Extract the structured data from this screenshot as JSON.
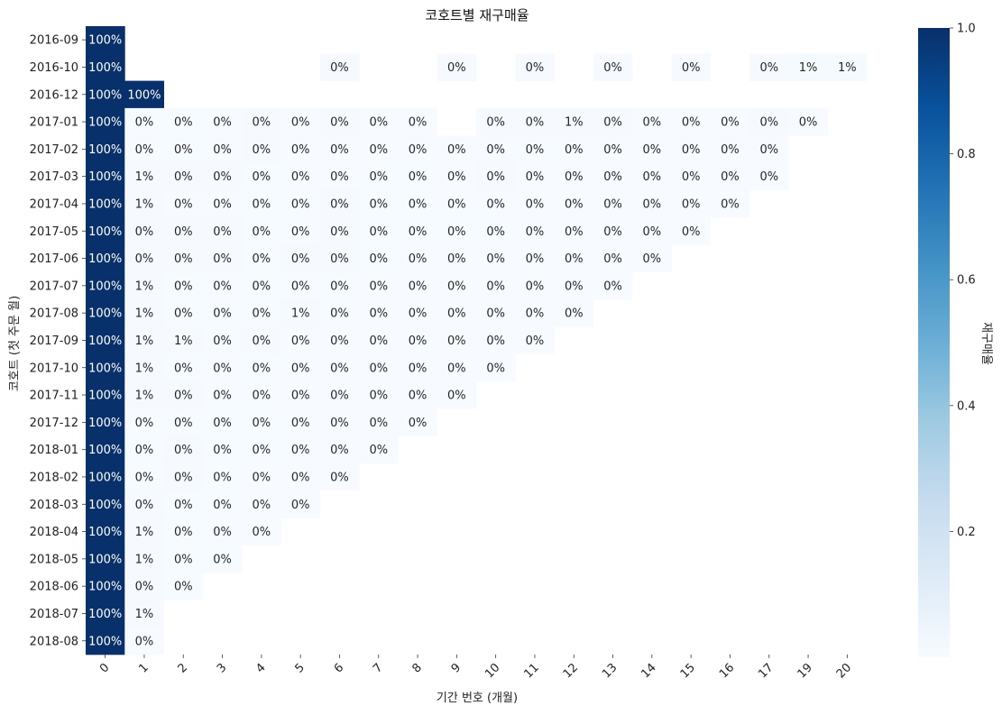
{
  "chart_data": {
    "type": "heatmap",
    "title": "코호트별 재구매율",
    "xlabel": "기간 번호 (개월)",
    "ylabel": "코호트 (첫 주문 월)",
    "colorbar_label": "재구매율",
    "colormap": "Blues",
    "vmin": 0.0,
    "vmax": 1.0,
    "colorbar_ticks": [
      "0.2",
      "0.4",
      "0.6",
      "0.8",
      "1.0"
    ],
    "colorbar_tick_values": [
      0.2,
      0.4,
      0.6,
      0.8,
      1.0
    ],
    "x": [
      "0",
      "1",
      "2",
      "3",
      "4",
      "5",
      "6",
      "7",
      "8",
      "9",
      "10",
      "11",
      "12",
      "13",
      "14",
      "15",
      "16",
      "17",
      "19",
      "20"
    ],
    "y": [
      "2016-09",
      "2016-10",
      "2016-12",
      "2017-01",
      "2017-02",
      "2017-03",
      "2017-04",
      "2017-05",
      "2017-06",
      "2017-07",
      "2017-08",
      "2017-09",
      "2017-10",
      "2017-11",
      "2017-12",
      "2018-01",
      "2018-02",
      "2018-03",
      "2018-04",
      "2018-05",
      "2018-06",
      "2018-07",
      "2018-08"
    ],
    "values": [
      [
        1.0,
        null,
        null,
        null,
        null,
        null,
        null,
        null,
        null,
        null,
        null,
        null,
        null,
        null,
        null,
        null,
        null,
        null,
        null,
        null
      ],
      [
        1.0,
        null,
        null,
        null,
        null,
        null,
        0.004,
        null,
        null,
        0.004,
        null,
        0.004,
        null,
        0.004,
        null,
        0.004,
        null,
        0.004,
        0.008,
        0.008
      ],
      [
        1.0,
        1.0,
        null,
        null,
        null,
        null,
        null,
        null,
        null,
        null,
        null,
        null,
        null,
        null,
        null,
        null,
        null,
        null,
        null,
        null
      ],
      [
        1.0,
        0.003,
        0.003,
        0.002,
        0.004,
        0.002,
        0.004,
        0.002,
        0.001,
        null,
        0.004,
        0.004,
        0.007,
        0.004,
        0.002,
        0.002,
        0.002,
        0.004,
        0.002,
        null
      ],
      [
        1.0,
        0.002,
        0.003,
        0.002,
        0.004,
        0.002,
        0.002,
        0.002,
        0.002,
        0.002,
        0.001,
        0.003,
        0.001,
        0.002,
        0.001,
        0.001,
        0.002,
        0.002,
        null,
        null
      ],
      [
        1.0,
        0.005,
        0.004,
        0.004,
        0.003,
        0.002,
        0.002,
        0.003,
        0.003,
        0.001,
        0.004,
        0.001,
        0.002,
        0.001,
        0.002,
        0.002,
        0.001,
        0.001,
        null,
        null
      ],
      [
        1.0,
        0.006,
        0.002,
        0.002,
        0.003,
        0.003,
        0.004,
        0.003,
        0.003,
        0.002,
        0.002,
        0.001,
        0.001,
        0.002,
        0.002,
        0.001,
        0.001,
        null,
        null,
        null
      ],
      [
        1.0,
        0.005,
        0.005,
        0.004,
        0.003,
        0.002,
        0.004,
        0.003,
        0.003,
        0.003,
        0.003,
        0.002,
        0.002,
        0.001,
        0.002,
        0.002,
        null,
        null,
        null,
        null
      ],
      [
        1.0,
        0.005,
        0.004,
        0.004,
        0.003,
        0.004,
        0.004,
        0.003,
        0.002,
        0.002,
        0.002,
        0.002,
        0.002,
        0.001,
        0.002,
        null,
        null,
        null,
        null,
        null
      ],
      [
        1.0,
        0.005,
        0.003,
        0.002,
        0.003,
        0.002,
        0.003,
        0.002,
        0.002,
        0.002,
        0.002,
        0.002,
        0.001,
        0.001,
        null,
        null,
        null,
        null,
        null,
        null
      ],
      [
        1.0,
        0.007,
        0.003,
        0.003,
        0.003,
        0.005,
        0.003,
        0.002,
        0.001,
        0.002,
        0.002,
        0.001,
        0.001,
        null,
        null,
        null,
        null,
        null,
        null,
        null
      ],
      [
        1.0,
        0.007,
        0.005,
        0.003,
        0.004,
        0.002,
        0.002,
        0.002,
        0.003,
        0.002,
        0.002,
        0.001,
        null,
        null,
        null,
        null,
        null,
        null,
        null,
        null
      ],
      [
        1.0,
        0.005,
        0.003,
        0.001,
        0.003,
        0.002,
        0.002,
        0.001,
        0.002,
        0.002,
        0.002,
        null,
        null,
        null,
        null,
        null,
        null,
        null,
        null,
        null
      ],
      [
        1.0,
        0.006,
        0.004,
        0.002,
        0.002,
        0.002,
        0.002,
        0.002,
        0.001,
        0.001,
        null,
        null,
        null,
        null,
        null,
        null,
        null,
        null,
        null,
        null
      ],
      [
        1.0,
        0.002,
        0.003,
        0.003,
        0.003,
        0.002,
        0.002,
        0.001,
        0.002,
        null,
        null,
        null,
        null,
        null,
        null,
        null,
        null,
        null,
        null,
        null
      ],
      [
        1.0,
        0.003,
        0.004,
        0.003,
        0.003,
        0.002,
        0.002,
        0.001,
        null,
        null,
        null,
        null,
        null,
        null,
        null,
        null,
        null,
        null,
        null,
        null
      ],
      [
        1.0,
        0.003,
        0.004,
        0.003,
        0.002,
        0.002,
        0.001,
        null,
        null,
        null,
        null,
        null,
        null,
        null,
        null,
        null,
        null,
        null,
        null,
        null
      ],
      [
        1.0,
        0.004,
        0.003,
        0.003,
        0.002,
        0.001,
        null,
        null,
        null,
        null,
        null,
        null,
        null,
        null,
        null,
        null,
        null,
        null,
        null,
        null
      ],
      [
        1.0,
        0.006,
        0.003,
        0.002,
        0.001,
        null,
        null,
        null,
        null,
        null,
        null,
        null,
        null,
        null,
        null,
        null,
        null,
        null,
        null,
        null
      ],
      [
        1.0,
        0.005,
        0.003,
        0.003,
        null,
        null,
        null,
        null,
        null,
        null,
        null,
        null,
        null,
        null,
        null,
        null,
        null,
        null,
        null,
        null
      ],
      [
        1.0,
        0.004,
        0.003,
        null,
        null,
        null,
        null,
        null,
        null,
        null,
        null,
        null,
        null,
        null,
        null,
        null,
        null,
        null,
        null,
        null
      ],
      [
        1.0,
        0.005,
        null,
        null,
        null,
        null,
        null,
        null,
        null,
        null,
        null,
        null,
        null,
        null,
        null,
        null,
        null,
        null,
        null,
        null
      ],
      [
        1.0,
        0.002,
        null,
        null,
        null,
        null,
        null,
        null,
        null,
        null,
        null,
        null,
        null,
        null,
        null,
        null,
        null,
        null,
        null,
        null
      ]
    ],
    "labels": [
      [
        "100%",
        "",
        "",
        "",
        "",
        "",
        "",
        "",
        "",
        "",
        "",
        "",
        "",
        "",
        "",
        "",
        "",
        "",
        "",
        ""
      ],
      [
        "100%",
        "",
        "",
        "",
        "",
        "",
        "0%",
        "",
        "",
        "0%",
        "",
        "0%",
        "",
        "0%",
        "",
        "0%",
        "",
        "0%",
        "1%",
        "1%"
      ],
      [
        "100%",
        "100%",
        "",
        "",
        "",
        "",
        "",
        "",
        "",
        "",
        "",
        "",
        "",
        "",
        "",
        "",
        "",
        "",
        "",
        ""
      ],
      [
        "100%",
        "0%",
        "0%",
        "0%",
        "0%",
        "0%",
        "0%",
        "0%",
        "0%",
        "",
        "0%",
        "0%",
        "1%",
        "0%",
        "0%",
        "0%",
        "0%",
        "0%",
        "0%",
        ""
      ],
      [
        "100%",
        "0%",
        "0%",
        "0%",
        "0%",
        "0%",
        "0%",
        "0%",
        "0%",
        "0%",
        "0%",
        "0%",
        "0%",
        "0%",
        "0%",
        "0%",
        "0%",
        "0%",
        "",
        ""
      ],
      [
        "100%",
        "1%",
        "0%",
        "0%",
        "0%",
        "0%",
        "0%",
        "0%",
        "0%",
        "0%",
        "0%",
        "0%",
        "0%",
        "0%",
        "0%",
        "0%",
        "0%",
        "0%",
        "",
        ""
      ],
      [
        "100%",
        "1%",
        "0%",
        "0%",
        "0%",
        "0%",
        "0%",
        "0%",
        "0%",
        "0%",
        "0%",
        "0%",
        "0%",
        "0%",
        "0%",
        "0%",
        "0%",
        "",
        "",
        ""
      ],
      [
        "100%",
        "0%",
        "0%",
        "0%",
        "0%",
        "0%",
        "0%",
        "0%",
        "0%",
        "0%",
        "0%",
        "0%",
        "0%",
        "0%",
        "0%",
        "0%",
        "",
        "",
        "",
        ""
      ],
      [
        "100%",
        "0%",
        "0%",
        "0%",
        "0%",
        "0%",
        "0%",
        "0%",
        "0%",
        "0%",
        "0%",
        "0%",
        "0%",
        "0%",
        "0%",
        "",
        "",
        "",
        "",
        ""
      ],
      [
        "100%",
        "1%",
        "0%",
        "0%",
        "0%",
        "0%",
        "0%",
        "0%",
        "0%",
        "0%",
        "0%",
        "0%",
        "0%",
        "0%",
        "",
        "",
        "",
        "",
        "",
        ""
      ],
      [
        "100%",
        "1%",
        "0%",
        "0%",
        "0%",
        "1%",
        "0%",
        "0%",
        "0%",
        "0%",
        "0%",
        "0%",
        "0%",
        "",
        "",
        "",
        "",
        "",
        "",
        ""
      ],
      [
        "100%",
        "1%",
        "1%",
        "0%",
        "0%",
        "0%",
        "0%",
        "0%",
        "0%",
        "0%",
        "0%",
        "0%",
        "",
        "",
        "",
        "",
        "",
        "",
        "",
        ""
      ],
      [
        "100%",
        "1%",
        "0%",
        "0%",
        "0%",
        "0%",
        "0%",
        "0%",
        "0%",
        "0%",
        "0%",
        "",
        "",
        "",
        "",
        "",
        "",
        "",
        "",
        ""
      ],
      [
        "100%",
        "1%",
        "0%",
        "0%",
        "0%",
        "0%",
        "0%",
        "0%",
        "0%",
        "0%",
        "",
        "",
        "",
        "",
        "",
        "",
        "",
        "",
        "",
        ""
      ],
      [
        "100%",
        "0%",
        "0%",
        "0%",
        "0%",
        "0%",
        "0%",
        "0%",
        "0%",
        "",
        "",
        "",
        "",
        "",
        "",
        "",
        "",
        "",
        "",
        ""
      ],
      [
        "100%",
        "0%",
        "0%",
        "0%",
        "0%",
        "0%",
        "0%",
        "0%",
        "",
        "",
        "",
        "",
        "",
        "",
        "",
        "",
        "",
        "",
        "",
        ""
      ],
      [
        "100%",
        "0%",
        "0%",
        "0%",
        "0%",
        "0%",
        "0%",
        "",
        "",
        "",
        "",
        "",
        "",
        "",
        "",
        "",
        "",
        "",
        "",
        ""
      ],
      [
        "100%",
        "0%",
        "0%",
        "0%",
        "0%",
        "0%",
        "",
        "",
        "",
        "",
        "",
        "",
        "",
        "",
        "",
        "",
        "",
        "",
        "",
        ""
      ],
      [
        "100%",
        "1%",
        "0%",
        "0%",
        "0%",
        "",
        "",
        "",
        "",
        "",
        "",
        "",
        "",
        "",
        "",
        "",
        "",
        "",
        "",
        ""
      ],
      [
        "100%",
        "1%",
        "0%",
        "0%",
        "",
        "",
        "",
        "",
        "",
        "",
        "",
        "",
        "",
        "",
        "",
        "",
        "",
        "",
        "",
        ""
      ],
      [
        "100%",
        "0%",
        "0%",
        "",
        "",
        "",
        "",
        "",
        "",
        "",
        "",
        "",
        "",
        "",
        "",
        "",
        "",
        "",
        "",
        ""
      ],
      [
        "100%",
        "1%",
        "",
        "",
        "",
        "",
        "",
        "",
        "",
        "",
        "",
        "",
        "",
        "",
        "",
        "",
        "",
        "",
        "",
        ""
      ],
      [
        "100%",
        "0%",
        "",
        "",
        "",
        "",
        "",
        "",
        "",
        "",
        "",
        "",
        "",
        "",
        "",
        "",
        "",
        "",
        "",
        ""
      ]
    ],
    "grid": false,
    "legend": "colorbar-right"
  }
}
